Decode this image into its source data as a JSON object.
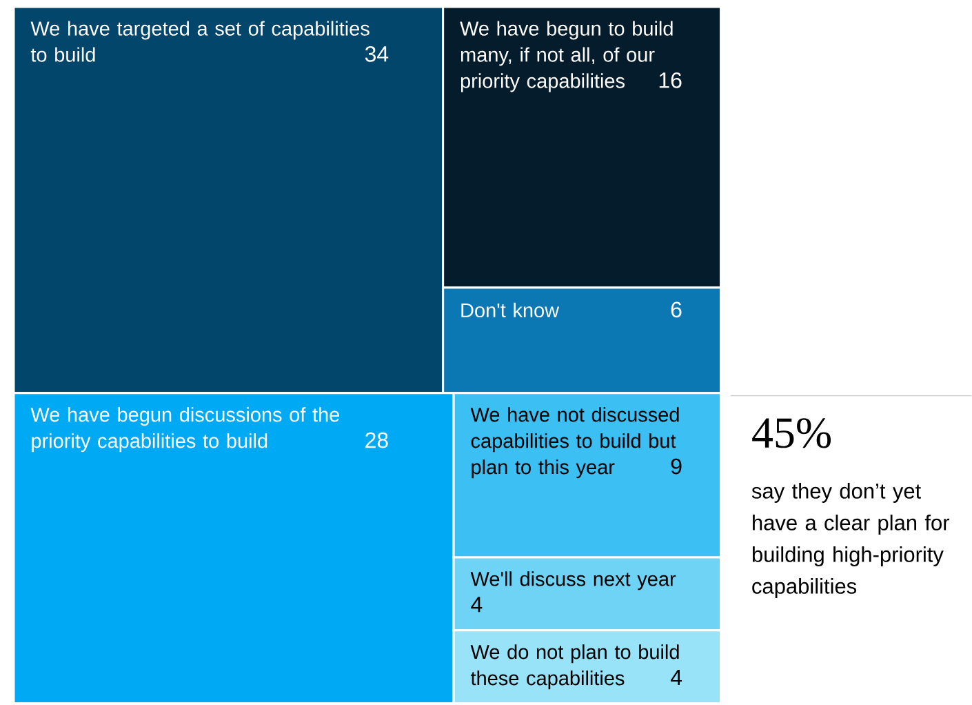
{
  "chart_data": {
    "type": "other",
    "categories": [
      "We have targeted a set of capabilities to build",
      "We have begun to build many, if not all, of our priority capabilities",
      "Don't know",
      "We have begun discussions of the priority capabilities to build",
      "We have not discussed capabilities to build but plan to this year",
      "We'll discuss next year",
      "We do not plan to build these capabilities"
    ],
    "values": [
      34,
      16,
      6,
      28,
      9,
      4,
      4
    ],
    "colors": [
      "#03466b",
      "#051c2c",
      "#0b77b3",
      "#00a9f4",
      "#3cbff2",
      "#6fd3f6",
      "#99e3f9"
    ],
    "data_labels": true,
    "annotations": [
      "45%",
      "say they don’t yet have a clear plan for building high-priority capabilities"
    ]
  }
}
